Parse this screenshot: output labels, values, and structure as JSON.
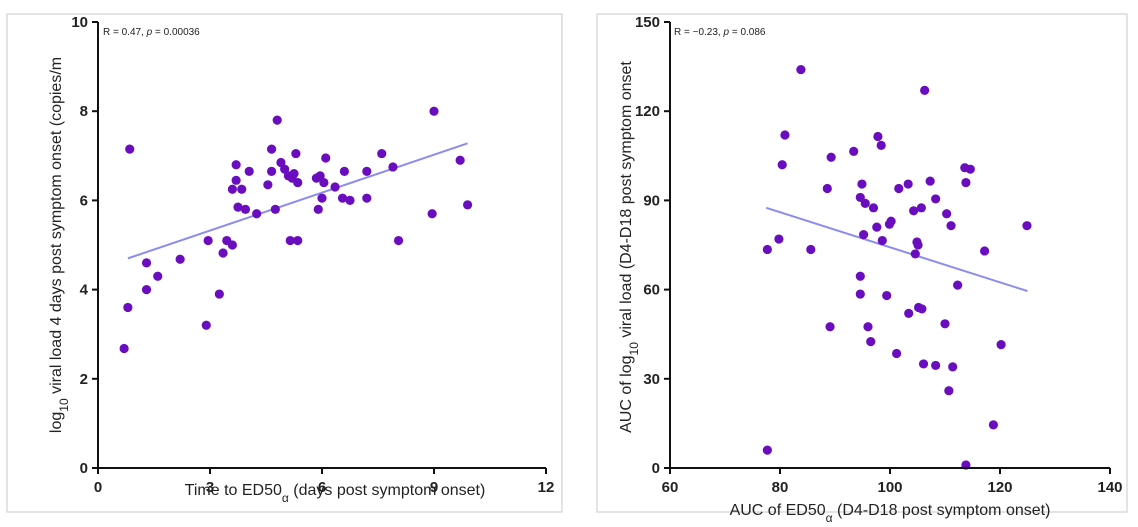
{
  "colors": {
    "point": "#6a0dbf",
    "fit": "#8c8cf0",
    "axis": "#111111"
  },
  "chart_data": [
    {
      "type": "scatter",
      "stat": {
        "prefix": "R = 0.47, ",
        "p_label": "p",
        "suffix": " = 0.00036"
      },
      "xlabel": {
        "main": "Time to ED50",
        "sub": "α",
        "rest": " (days post symptom onset)"
      },
      "ylabel": {
        "sup": "log",
        "sub": "10",
        "rest": " viral load 4 days post symptom onset (copies/m"
      },
      "xlim": [
        0,
        12
      ],
      "ylim": [
        0,
        10
      ],
      "x_ticks": [
        0,
        3,
        6,
        9,
        12
      ],
      "x_tick_labels": [
        "0",
        "3",
        "6",
        "9",
        "12"
      ],
      "y_ticks": [
        0,
        2,
        4,
        6,
        8,
        10
      ],
      "y_tick_labels": [
        "0",
        "2",
        "4",
        "6",
        "8",
        "10"
      ],
      "fit_line": {
        "x": [
          0.8,
          9.9
        ],
        "y": [
          4.7,
          7.28
        ]
      },
      "points": [
        [
          0.7,
          2.68
        ],
        [
          0.8,
          3.6
        ],
        [
          0.85,
          7.15
        ],
        [
          1.3,
          4.6
        ],
        [
          1.3,
          4.0
        ],
        [
          1.6,
          4.3
        ],
        [
          2.2,
          4.68
        ],
        [
          2.9,
          3.2
        ],
        [
          2.95,
          5.1
        ],
        [
          3.25,
          3.9
        ],
        [
          3.35,
          4.82
        ],
        [
          3.45,
          5.1
        ],
        [
          3.6,
          5.0
        ],
        [
          3.6,
          6.25
        ],
        [
          3.7,
          6.45
        ],
        [
          3.7,
          6.8
        ],
        [
          3.75,
          5.85
        ],
        [
          3.85,
          6.25
        ],
        [
          3.95,
          5.8
        ],
        [
          4.05,
          6.65
        ],
        [
          4.25,
          5.7
        ],
        [
          4.55,
          6.35
        ],
        [
          4.65,
          7.15
        ],
        [
          4.65,
          6.65
        ],
        [
          4.75,
          5.8
        ],
        [
          4.8,
          7.8
        ],
        [
          4.9,
          6.85
        ],
        [
          5.0,
          6.7
        ],
        [
          5.1,
          6.55
        ],
        [
          5.15,
          5.1
        ],
        [
          5.2,
          6.5
        ],
        [
          5.25,
          6.6
        ],
        [
          5.3,
          7.05
        ],
        [
          5.35,
          6.4
        ],
        [
          5.35,
          5.1
        ],
        [
          5.85,
          6.5
        ],
        [
          5.9,
          5.8
        ],
        [
          5.95,
          6.55
        ],
        [
          6.0,
          6.05
        ],
        [
          6.05,
          6.4
        ],
        [
          6.1,
          6.95
        ],
        [
          6.35,
          6.3
        ],
        [
          6.55,
          6.05
        ],
        [
          6.6,
          6.65
        ],
        [
          6.75,
          6.0
        ],
        [
          7.2,
          6.65
        ],
        [
          7.2,
          6.05
        ],
        [
          7.6,
          7.05
        ],
        [
          7.9,
          6.75
        ],
        [
          8.05,
          5.1
        ],
        [
          8.95,
          5.7
        ],
        [
          9.0,
          8.0
        ],
        [
          9.7,
          6.9
        ],
        [
          9.9,
          5.9
        ]
      ]
    },
    {
      "type": "scatter",
      "stat": {
        "prefix": "R = −0.23, ",
        "p_label": "p",
        "suffix": " = 0.086"
      },
      "xlabel": {
        "main": "AUC of ED50",
        "sub": "α",
        "rest": " (D4-D18 post symptom onset)"
      },
      "ylabel": {
        "pre": "AUC of log",
        "sub": "10",
        "rest": " viral load (D4-D18 post symptom onset"
      },
      "xlim": [
        60,
        140
      ],
      "ylim": [
        0,
        150
      ],
      "x_ticks": [
        60,
        80,
        100,
        120,
        140
      ],
      "x_tick_labels": [
        "60",
        "80",
        "100",
        "120",
        "140"
      ],
      "y_ticks": [
        0,
        30,
        60,
        90,
        120,
        150
      ],
      "y_tick_labels": [
        "0",
        "30",
        "60",
        "90",
        "120",
        "150"
      ],
      "fit_line": {
        "x": [
          77.5,
          125
        ],
        "y": [
          87.5,
          59.5
        ]
      },
      "points": [
        [
          77.7,
          73.5
        ],
        [
          77.7,
          6
        ],
        [
          79.8,
          77
        ],
        [
          80.4,
          102
        ],
        [
          80.9,
          112
        ],
        [
          83.8,
          134
        ],
        [
          85.6,
          73.5
        ],
        [
          88.6,
          94
        ],
        [
          89.1,
          47.5
        ],
        [
          89.3,
          104.5
        ],
        [
          93.4,
          106.5
        ],
        [
          94.6,
          64.5
        ],
        [
          94.6,
          58.5
        ],
        [
          94.6,
          91
        ],
        [
          94.9,
          95.5
        ],
        [
          95.2,
          78.5
        ],
        [
          95.5,
          89
        ],
        [
          96.0,
          47.5
        ],
        [
          96.5,
          42.5
        ],
        [
          97.0,
          87.5
        ],
        [
          97.6,
          81
        ],
        [
          97.8,
          111.5
        ],
        [
          98.4,
          108.5
        ],
        [
          98.6,
          76.5
        ],
        [
          99.4,
          58
        ],
        [
          99.9,
          82
        ],
        [
          100.2,
          83
        ],
        [
          101.2,
          38.5
        ],
        [
          101.6,
          94
        ],
        [
          103.3,
          95.5
        ],
        [
          103.4,
          52
        ],
        [
          104.3,
          86.5
        ],
        [
          104.6,
          72
        ],
        [
          104.9,
          76
        ],
        [
          105.1,
          75
        ],
        [
          105.2,
          54
        ],
        [
          105.7,
          87.5
        ],
        [
          105.8,
          53.5
        ],
        [
          106.1,
          35
        ],
        [
          106.3,
          127
        ],
        [
          107.3,
          96.5
        ],
        [
          108.3,
          90.5
        ],
        [
          108.3,
          34.5
        ],
        [
          110.0,
          48.5
        ],
        [
          110.3,
          85.5
        ],
        [
          110.7,
          26
        ],
        [
          111.1,
          81.5
        ],
        [
          111.4,
          34
        ],
        [
          112.3,
          61.5
        ],
        [
          113.6,
          101
        ],
        [
          113.8,
          96
        ],
        [
          113.8,
          1
        ],
        [
          114.6,
          100.5
        ],
        [
          117.2,
          73
        ],
        [
          118.8,
          14.5
        ],
        [
          120.2,
          41.5
        ],
        [
          124.9,
          81.5
        ]
      ]
    }
  ]
}
